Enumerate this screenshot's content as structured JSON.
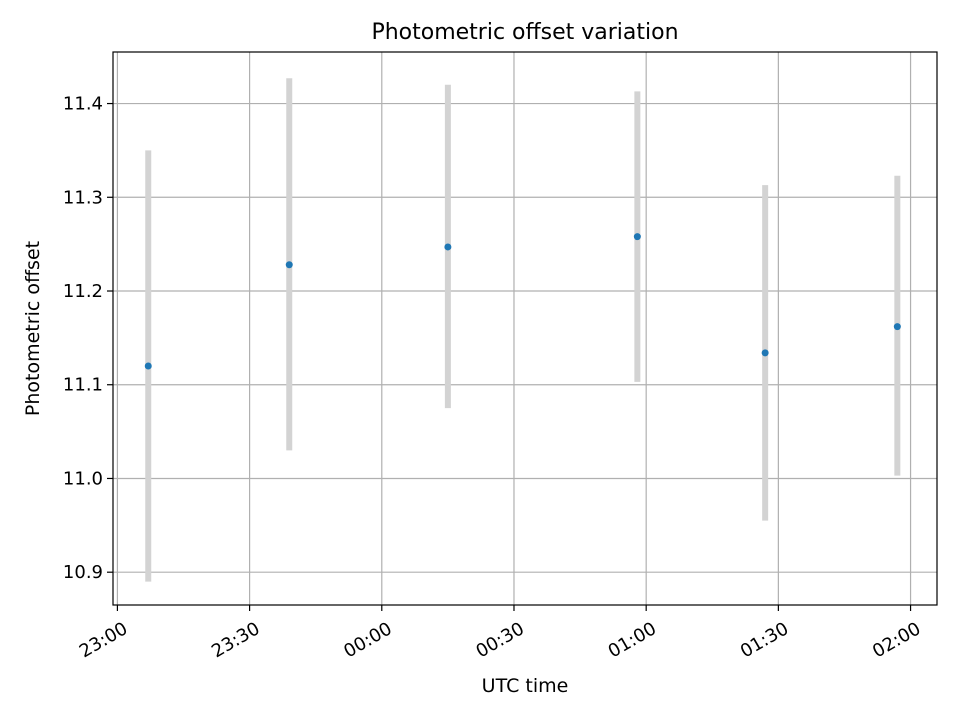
{
  "chart_data": {
    "type": "scatter",
    "title": "Photometric offset variation",
    "xlabel": "UTC time",
    "ylabel": "Photometric offset",
    "x_type": "time",
    "x_ticks": [
      "23:00",
      "23:30",
      "00:00",
      "00:30",
      "01:00",
      "01:30",
      "02:00"
    ],
    "xlim": [
      "22:59",
      "02:06"
    ],
    "y_ticks": [
      10.9,
      11.0,
      11.1,
      11.2,
      11.3,
      11.4
    ],
    "ylim": [
      10.865,
      11.455
    ],
    "grid": true,
    "series": [
      {
        "x": [
          "23:07",
          "23:39",
          "00:15",
          "00:58",
          "01:27",
          "01:57"
        ],
        "y": [
          11.12,
          11.228,
          11.247,
          11.258,
          11.134,
          11.162
        ],
        "yerr_low": [
          10.89,
          11.03,
          11.075,
          11.103,
          10.955,
          11.003
        ],
        "yerr_high": [
          11.35,
          11.427,
          11.42,
          11.413,
          11.313,
          11.323
        ]
      }
    ],
    "colors": {
      "point": "#1f77b4",
      "errorbar": "#d3d3d3",
      "grid": "#b0b0b0"
    }
  }
}
